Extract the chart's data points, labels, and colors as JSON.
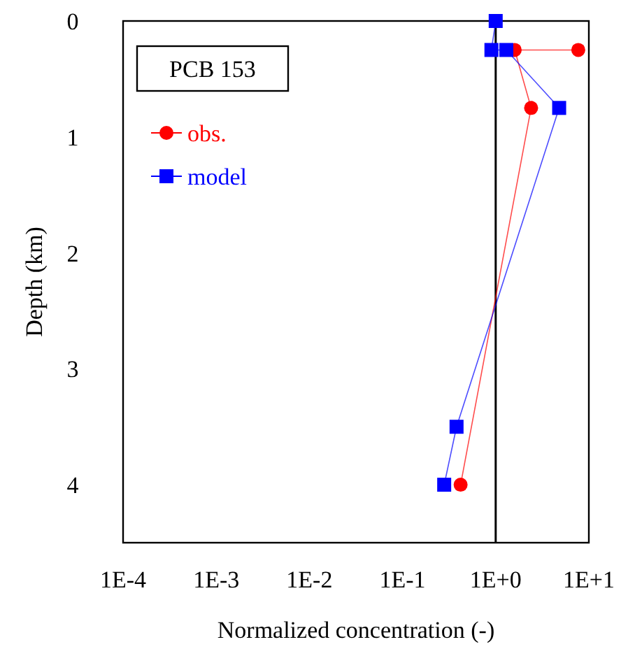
{
  "chart_data": {
    "type": "line",
    "title": "PCB 153",
    "xlabel": "Normalized concentration (-)",
    "ylabel": "Depth (km)",
    "log": "x",
    "xlim": [
      0.0001,
      10
    ],
    "xticks": [
      {
        "value": 0.0001,
        "label": "1E-4"
      },
      {
        "value": 0.001,
        "label": "1E-3"
      },
      {
        "value": 0.01,
        "label": "1E-2"
      },
      {
        "value": 0.1,
        "label": "1E-1"
      },
      {
        "value": 1,
        "label": "1E+0"
      },
      {
        "value": 10,
        "label": "1E+1"
      }
    ],
    "ylim": [
      4.5,
      0
    ],
    "yticks": [
      0,
      1,
      2,
      3,
      4
    ],
    "legend": "top left",
    "ref_lines": [
      {
        "axis": "x",
        "value": 1,
        "color": "#000000"
      }
    ],
    "series": [
      {
        "name": "obs.",
        "color": "#ff0000",
        "marker": "circle",
        "x": [
          7.7,
          1.6,
          2.4,
          0.42
        ],
        "values": [
          0.25,
          0.25,
          0.75,
          4
        ]
      },
      {
        "name": "model",
        "color": "#0000ff",
        "marker": "square",
        "x": [
          1,
          0.9,
          1.3,
          4.8,
          0.38,
          0.28
        ],
        "values": [
          0,
          0.25,
          0.25,
          0.75,
          3.5,
          4
        ]
      }
    ]
  }
}
